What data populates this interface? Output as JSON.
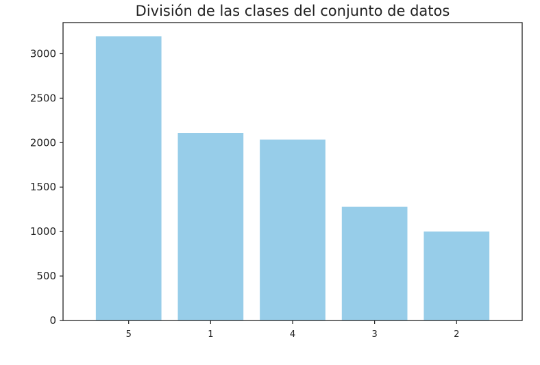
{
  "chart_data": {
    "type": "bar",
    "title": "División de las clases del conjunto de datos",
    "xlabel": "",
    "ylabel": "",
    "categories": [
      "5",
      "1",
      "4",
      "3",
      "2"
    ],
    "values": [
      3195,
      2110,
      2035,
      1280,
      1000
    ],
    "ylim": [
      0,
      3350
    ],
    "yticks": [
      0,
      500,
      1000,
      1500,
      2000,
      2500,
      3000
    ],
    "ytick_labels": [
      "0",
      "500",
      "1000",
      "1500",
      "2000",
      "2500",
      "3000"
    ],
    "grid": false,
    "legend": "none",
    "bar_color": "#97cde9",
    "axis_color": "#222222"
  }
}
